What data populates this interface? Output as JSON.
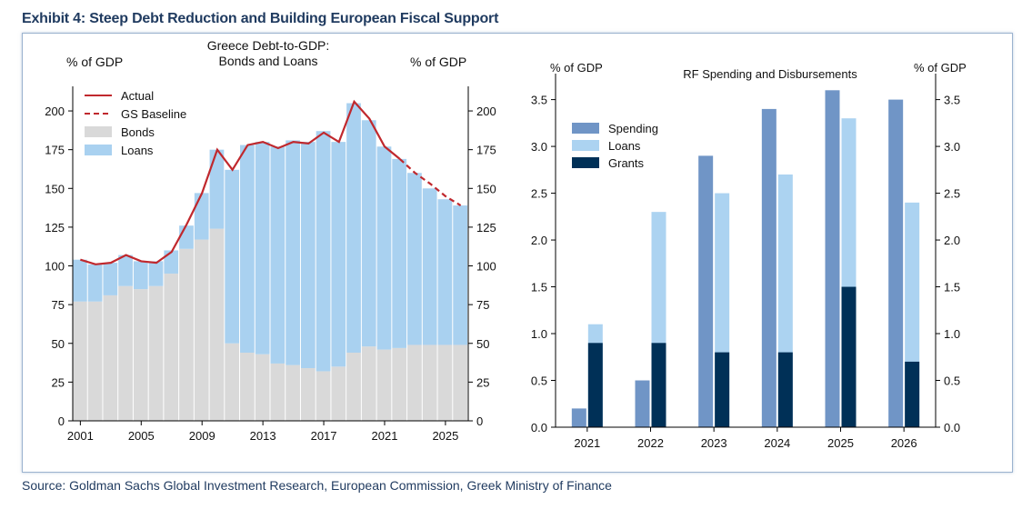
{
  "title": "Exhibit 4: Steep Debt Reduction and Building European Fiscal Support",
  "source": "Source: Goldman Sachs Global Investment Research, European Commission, Greek Ministry of Finance",
  "colors": {
    "actual": "#c0282d",
    "bonds": "#d9d9d9",
    "loans_left": "#a9d1f0",
    "spending": "#7095c6",
    "loans_right": "#acd3f1",
    "grants": "#003057"
  },
  "chart_data": [
    {
      "type": "bar",
      "stacked": true,
      "title_line1": "Greece Debt-to-GDP:",
      "title_line2": "Bonds and Loans",
      "ylabel_left": "% of GDP",
      "ylabel_right": "% of GDP",
      "ylim": [
        0,
        210
      ],
      "yticks": [
        0,
        25,
        50,
        75,
        100,
        125,
        150,
        175,
        200
      ],
      "xticks": [
        "2001",
        "2005",
        "2009",
        "2013",
        "2017",
        "2021",
        "2025"
      ],
      "x": [
        2001,
        2002,
        2003,
        2004,
        2005,
        2006,
        2007,
        2008,
        2009,
        2010,
        2011,
        2012,
        2013,
        2014,
        2015,
        2016,
        2017,
        2018,
        2019,
        2020,
        2021,
        2022,
        2023,
        2024,
        2025,
        2026
      ],
      "series": [
        {
          "name": "Bonds",
          "values": [
            77,
            77,
            81,
            87,
            85,
            87,
            95,
            111,
            117,
            124,
            50,
            44,
            43,
            37,
            36,
            34,
            32,
            35,
            44,
            48,
            46,
            47,
            49,
            49,
            49,
            49
          ]
        },
        {
          "name": "Loans",
          "values": [
            27,
            24,
            21,
            20,
            18,
            16,
            15,
            15,
            30,
            51,
            112,
            134,
            137,
            140,
            145,
            146,
            155,
            145,
            161,
            146,
            131,
            122,
            111,
            101,
            94,
            90
          ]
        }
      ],
      "lines": [
        {
          "name": "Actual",
          "style": "solid",
          "x": [
            2001,
            2002,
            2003,
            2004,
            2005,
            2006,
            2007,
            2008,
            2009,
            2010,
            2011,
            2012,
            2013,
            2014,
            2015,
            2016,
            2017,
            2018,
            2019,
            2020,
            2021,
            2022
          ],
          "values": [
            104,
            101,
            102,
            107,
            103,
            102,
            109,
            127,
            147,
            175,
            162,
            178,
            180,
            176,
            180,
            179,
            186,
            180,
            206,
            195,
            177,
            169
          ]
        },
        {
          "name": "GS Baseline",
          "style": "dashed",
          "x": [
            2022,
            2023,
            2024,
            2025,
            2026
          ],
          "values": [
            169,
            160,
            153,
            145,
            139
          ]
        }
      ],
      "legend": [
        {
          "label": "Actual",
          "kind": "line"
        },
        {
          "label": "GS Baseline",
          "kind": "dash"
        },
        {
          "label": "Bonds",
          "kind": "box"
        },
        {
          "label": "Loans",
          "kind": "box"
        }
      ],
      "legend_position": "top-left"
    },
    {
      "type": "bar",
      "title": "RF Spending and Disbursements",
      "ylabel_left": "% of GDP",
      "ylabel_right": "% of GDP",
      "ylim": [
        0,
        3.7
      ],
      "yticks": [
        "0.0",
        "0.5",
        "1.0",
        "1.5",
        "2.0",
        "2.5",
        "3.0",
        "3.5"
      ],
      "categories": [
        "2021",
        "2022",
        "2023",
        "2024",
        "2025",
        "2026"
      ],
      "series": [
        {
          "name": "Spending",
          "values": [
            0.2,
            0.5,
            2.9,
            3.4,
            3.6,
            3.5
          ]
        },
        {
          "name": "Loans",
          "values": [
            1.1,
            2.3,
            2.5,
            2.7,
            3.3,
            2.4
          ]
        },
        {
          "name": "Grants",
          "values": [
            0.9,
            0.9,
            0.8,
            0.8,
            1.5,
            0.7
          ]
        }
      ],
      "legend_position": "top-left"
    }
  ]
}
